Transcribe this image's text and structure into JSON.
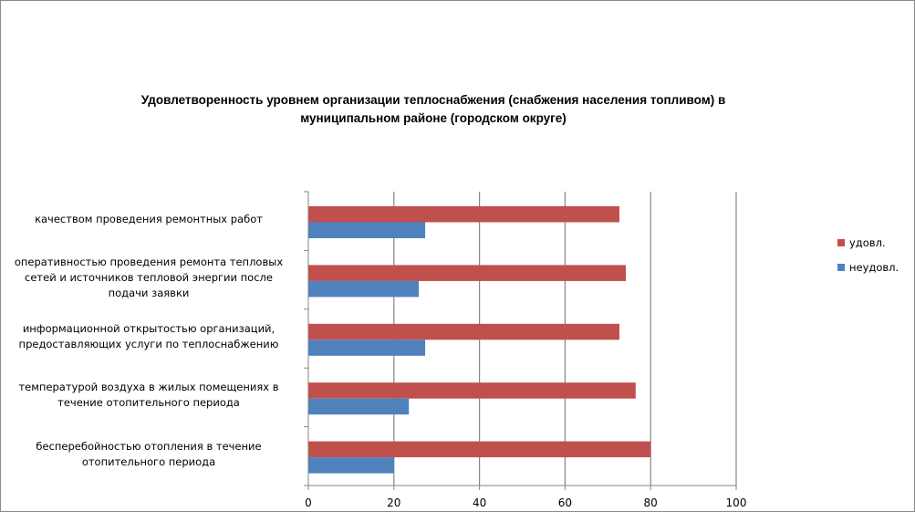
{
  "chart_data": {
    "type": "bar",
    "orientation": "horizontal",
    "stacked": false,
    "title": "Удовлетворенность уровнем организации теплоснабжения (снабжения населения топливом) в муниципальном районе (городском округе)",
    "title_lines": [
      "Удовлетворенность уровнем организации теплоснабжения (снабжения населения топливом) в",
      "муниципальном районе (городском округе)"
    ],
    "categories": [
      [
        "качеством проведения  ремонтных работ"
      ],
      [
        "оперативностью  проведения  ремонта тепловых",
        "сетей и источников тепловой энергии после",
        "подачи заявки"
      ],
      [
        "информационной открытостью организаций,",
        "предоставляющих услуги по теплоснабжению"
      ],
      [
        "температурой воздуха в жилых помещениях  в",
        "течение  отопительного периода"
      ],
      [
        "бесперебойностью  отопления в течение",
        "отопительного периода"
      ]
    ],
    "series": [
      {
        "name": "удовл.",
        "color": "#c0504d",
        "values": [
          72.7,
          74.2,
          72.7,
          76.5,
          80
        ]
      },
      {
        "name": "неудовл.",
        "color": "#4f81bd",
        "values": [
          27.3,
          25.8,
          27.3,
          23.5,
          20
        ]
      }
    ],
    "xlim": [
      0,
      100
    ],
    "xticks": [
      "0",
      "20",
      "40",
      "60",
      "80",
      "100"
    ],
    "grid": "vertical",
    "legend": "right"
  }
}
